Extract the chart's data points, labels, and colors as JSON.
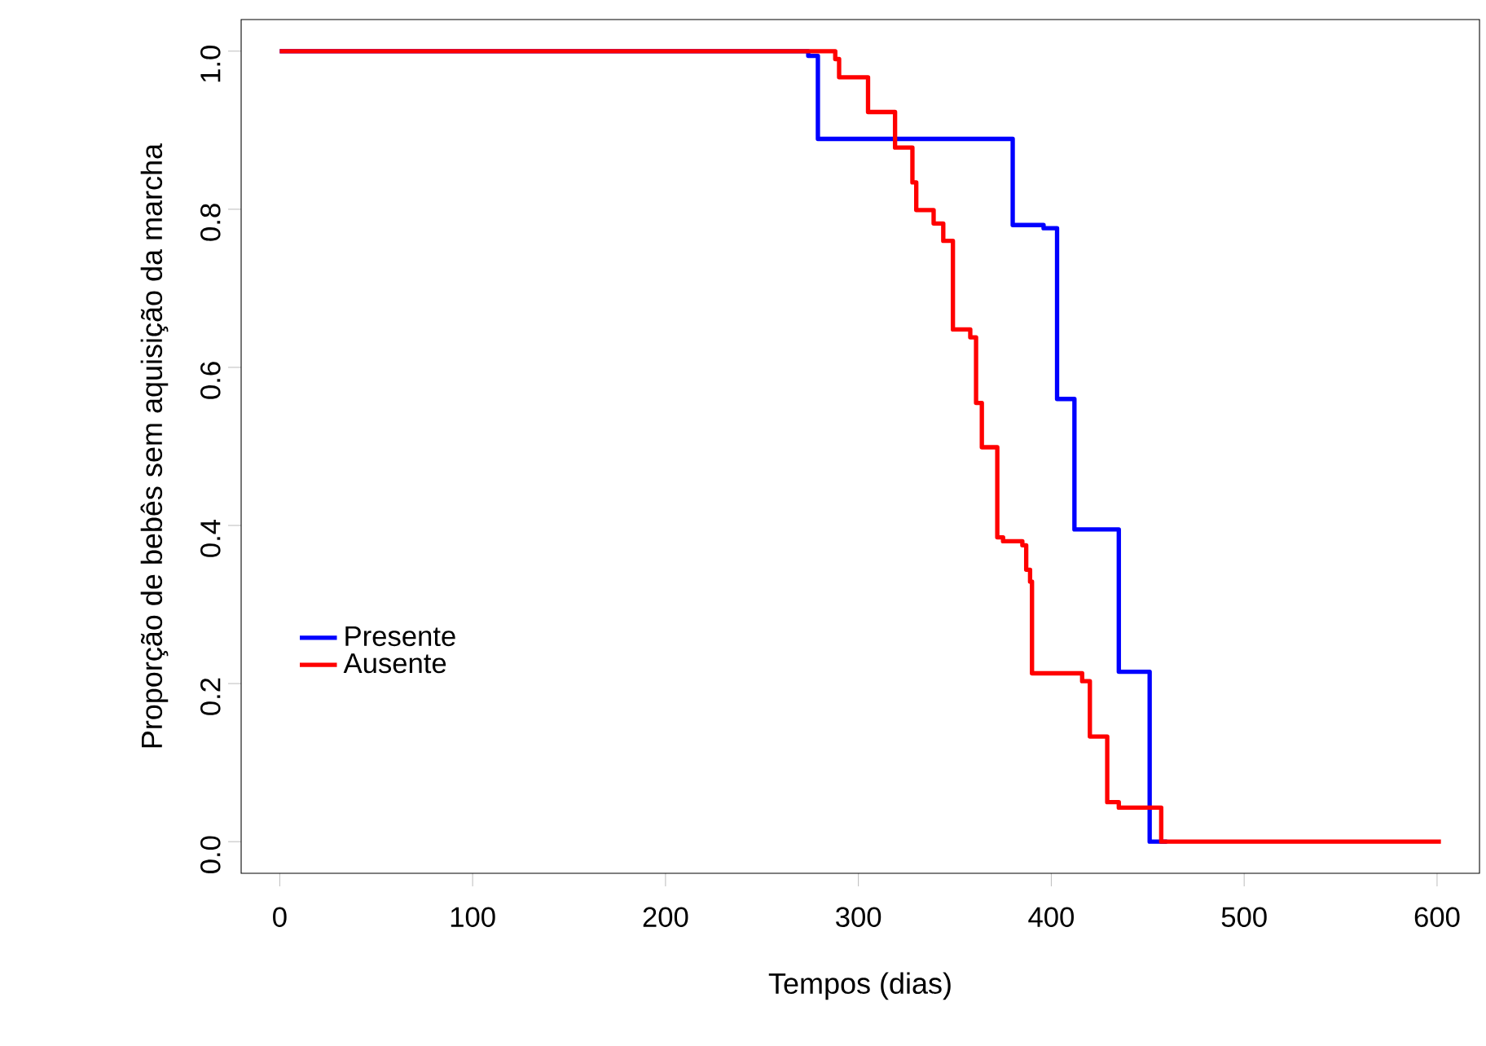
{
  "chart_data": {
    "type": "step",
    "xlabel": "Tempos (dias)",
    "ylabel": "Proporção de bebês sem aquisição da marcha",
    "xlim": [
      -20,
      622
    ],
    "ylim": [
      -0.04,
      1.04
    ],
    "xticks": [
      0,
      100,
      200,
      300,
      400,
      500,
      600
    ],
    "yticks": [
      {
        "value": 0,
        "label": "0.0"
      },
      {
        "value": 0.2,
        "label": "0.2"
      },
      {
        "value": 0.4,
        "label": "0.4"
      },
      {
        "value": 0.6,
        "label": "0.6"
      },
      {
        "value": 0.8,
        "label": "0.8"
      },
      {
        "value": 1,
        "label": "1.0"
      }
    ],
    "legend": "left",
    "grid": false,
    "marker": "none",
    "line_style": "solid",
    "series": [
      {
        "name": "Presente",
        "color": "#0000ff",
        "x": [
          0,
          274,
          279,
          380,
          396,
          403,
          412,
          435,
          451,
          460
        ],
        "values": [
          1.0,
          0.994,
          0.889,
          0.78,
          0.776,
          0.56,
          0.395,
          0.215,
          0.0,
          0.0
        ]
      },
      {
        "name": "Ausente",
        "color": "#ff0000",
        "x": [
          0,
          288,
          290,
          305,
          319,
          328,
          330,
          339,
          344,
          349,
          358,
          361,
          364,
          372,
          375,
          385,
          387,
          389,
          390,
          416,
          420,
          429,
          435,
          457,
          602
        ],
        "values": [
          1.0,
          0.99,
          0.967,
          0.923,
          0.878,
          0.834,
          0.799,
          0.782,
          0.76,
          0.648,
          0.638,
          0.555,
          0.499,
          0.385,
          0.38,
          0.375,
          0.344,
          0.329,
          0.213,
          0.203,
          0.133,
          0.05,
          0.043,
          0.0,
          0.0
        ]
      }
    ]
  }
}
